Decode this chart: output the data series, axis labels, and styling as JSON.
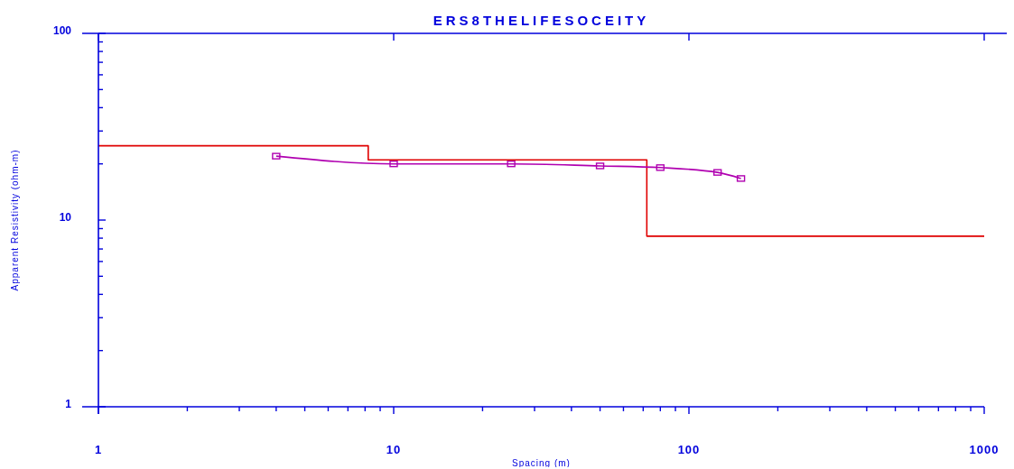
{
  "chart_data": {
    "type": "step",
    "title": "ERS8THELIFESOCEITY",
    "xlabel": "Spacing (m)",
    "ylabel": "Apparent Resistivity (ohm-m)",
    "log": "xy",
    "grid": false,
    "xlim": [
      1,
      1000
    ],
    "ylim": [
      1,
      100
    ],
    "xticks": [
      1,
      {
        "value": 2,
        "label": null
      },
      {
        "value": 3,
        "label": null
      },
      {
        "value": 4,
        "label": null
      },
      {
        "value": 5,
        "label": null
      },
      {
        "value": 6,
        "label": null
      },
      {
        "value": 7,
        "label": null
      },
      {
        "value": 8,
        "label": null
      },
      {
        "value": 9,
        "label": null
      },
      10,
      {
        "value": 20,
        "label": null
      },
      {
        "value": 30,
        "label": null
      },
      {
        "value": 40,
        "label": null
      },
      {
        "value": 50,
        "label": null
      },
      {
        "value": 60,
        "label": null
      },
      {
        "value": 70,
        "label": null
      },
      {
        "value": 80,
        "label": null
      },
      {
        "value": 90,
        "label": null
      },
      100,
      {
        "value": 200,
        "label": null
      },
      {
        "value": 300,
        "label": null
      },
      {
        "value": 400,
        "label": null
      },
      {
        "value": 500,
        "label": null
      },
      {
        "value": 600,
        "label": null
      },
      {
        "value": 700,
        "label": null
      },
      {
        "value": 800,
        "label": null
      },
      {
        "value": 900,
        "label": null
      },
      1000
    ],
    "yticks": [
      1,
      {
        "value": 2,
        "label": null
      },
      {
        "value": 3,
        "label": null
      },
      {
        "value": 4,
        "label": null
      },
      {
        "value": 5,
        "label": null
      },
      {
        "value": 6,
        "label": null
      },
      {
        "value": 7,
        "label": null
      },
      {
        "value": 8,
        "label": null
      },
      {
        "value": 9,
        "label": null
      },
      10,
      {
        "value": 20,
        "label": null
      },
      {
        "value": 30,
        "label": null
      },
      {
        "value": 40,
        "label": null
      },
      {
        "value": 50,
        "label": null
      },
      {
        "value": 60,
        "label": null
      },
      {
        "value": 70,
        "label": null
      },
      {
        "value": 80,
        "label": null
      },
      {
        "value": 90,
        "label": null
      },
      100
    ],
    "series": [
      {
        "color": "#e00000",
        "x": [
          1,
          8.2,
          72,
          1000
        ],
        "values": [
          25,
          21,
          8.2,
          8.2
        ],
        "marker": "none"
      },
      {
        "type": "line",
        "color": "#b000b0",
        "x": [
          4,
          10,
          25,
          50,
          80,
          125,
          150
        ],
        "values": [
          22,
          20,
          20,
          19.5,
          19.1,
          18,
          16.7
        ],
        "marker": "square"
      }
    ]
  }
}
